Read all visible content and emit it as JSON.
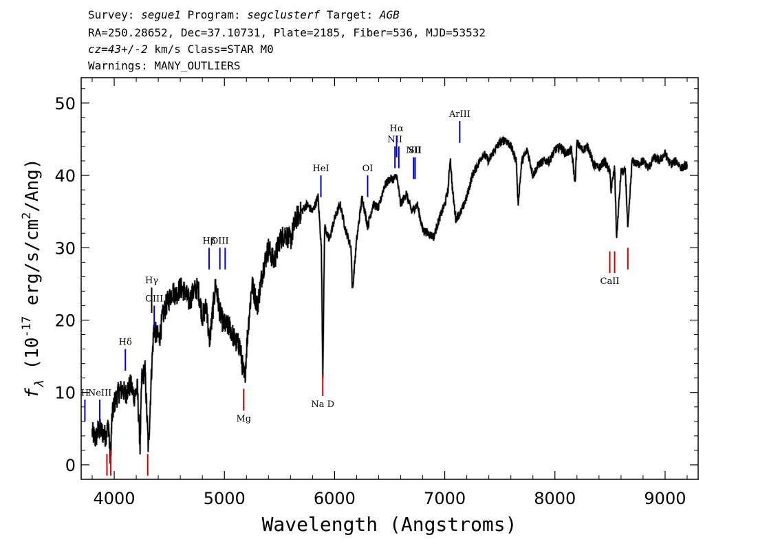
{
  "header": {
    "survey_label": "Survey:",
    "survey": "segue1",
    "program_label": "Program:",
    "program": "segclusterf",
    "target_label": "Target:",
    "target": "AGB",
    "line2": "RA=250.28652, Dec=37.10731, Plate=2185, Fiber=536, MJD=53532",
    "cz": "cz=43+/-2",
    "line3_rest": " km/s Class=STAR M0",
    "line4": "Warnings: MANY_OUTLIERS"
  },
  "chart_data": {
    "type": "line",
    "xlabel": "Wavelength (Angstroms)",
    "ylabel_prefix": "f",
    "ylabel_sub": "λ",
    "ylabel_rest": " (10",
    "ylabel_exp": "-17",
    "ylabel_units": " erg/s/cm",
    "ylabel_exp2": "2",
    "ylabel_end": "/Ang)",
    "xlim": [
      3700,
      9300
    ],
    "ylim": [
      -2,
      53.5
    ],
    "xticks": [
      4000,
      5000,
      6000,
      7000,
      8000,
      9000
    ],
    "yticks": [
      0,
      10,
      20,
      30,
      40,
      50
    ],
    "grid": false,
    "series": [
      {
        "color": "#000000",
        "x": [
          3800,
          3830,
          3860,
          3890,
          3920,
          3950,
          3965,
          3980,
          4000,
          4040,
          4080,
          4101,
          4120,
          4150,
          4180,
          4210,
          4235,
          4250,
          4280,
          4310,
          4340,
          4360,
          4380,
          4410,
          4440,
          4470,
          4500,
          4530,
          4560,
          4600,
          4640,
          4680,
          4720,
          4760,
          4800,
          4840,
          4861,
          4880,
          4920,
          4960,
          4990,
          5050,
          5100,
          5140,
          5170,
          5183,
          5210,
          5250,
          5300,
          5350,
          5400,
          5450,
          5500,
          5550,
          5600,
          5650,
          5700,
          5750,
          5800,
          5850,
          5880,
          5893,
          5910,
          5950,
          6000,
          6050,
          6100,
          6150,
          6162,
          6200,
          6250,
          6300,
          6350,
          6400,
          6450,
          6500,
          6540,
          6563,
          6600,
          6650,
          6700,
          6750,
          6800,
          6850,
          6900,
          6950,
          7000,
          7030,
          7050,
          7070,
          7100,
          7150,
          7200,
          7250,
          7300,
          7350,
          7400,
          7450,
          7500,
          7550,
          7600,
          7650,
          7665,
          7700,
          7750,
          7800,
          7850,
          7900,
          7950,
          8000,
          8050,
          8100,
          8150,
          8183,
          8200,
          8250,
          8300,
          8350,
          8400,
          8450,
          8498,
          8510,
          8542,
          8560,
          8600,
          8640,
          8662,
          8700,
          8750,
          8800,
          8850,
          8900,
          8950,
          9000,
          9050,
          9100,
          9150,
          9200
        ],
        "y": [
          4.5,
          3.5,
          5.0,
          4.5,
          4.0,
          5.5,
          0.5,
          6.5,
          8.5,
          10.0,
          10.5,
          9.5,
          10.5,
          11.0,
          9.5,
          10.5,
          2.5,
          12.0,
          13.0,
          2.0,
          13.5,
          19.0,
          18.0,
          17.5,
          20.5,
          22.0,
          23.0,
          24.0,
          23.5,
          24.5,
          24.0,
          22.5,
          24.0,
          24.5,
          20.5,
          22.0,
          17.0,
          19.0,
          25.0,
          21.0,
          19.5,
          19.0,
          17.0,
          16.5,
          13.0,
          11.5,
          18.0,
          25.0,
          22.0,
          27.0,
          30.0,
          28.0,
          31.0,
          32.0,
          31.0,
          34.0,
          35.0,
          36.0,
          35.0,
          37.0,
          30.0,
          12.5,
          33.0,
          31.0,
          34.0,
          36.0,
          32.5,
          30.0,
          24.0,
          31.0,
          37.0,
          33.0,
          36.0,
          35.5,
          38.5,
          39.5,
          39.5,
          40.0,
          36.0,
          37.5,
          35.0,
          36.0,
          32.5,
          32.0,
          31.5,
          34.0,
          36.0,
          38.0,
          42.5,
          38.0,
          34.0,
          35.0,
          37.0,
          40.0,
          41.5,
          43.0,
          42.0,
          43.5,
          44.5,
          45.0,
          44.0,
          42.0,
          36.0,
          42.0,
          43.5,
          40.0,
          41.5,
          42.0,
          42.0,
          43.5,
          44.0,
          43.0,
          43.5,
          39.0,
          44.5,
          43.5,
          44.0,
          41.5,
          41.0,
          42.0,
          40.5,
          38.0,
          41.0,
          31.5,
          40.5,
          40.5,
          32.5,
          42.0,
          41.5,
          42.0,
          41.0,
          42.5,
          42.0,
          43.0,
          41.5,
          42.0,
          41.0,
          41.5
        ]
      }
    ],
    "lines_top": [
      {
        "label": "H",
        "x": 3734,
        "y_bottom": 6.0,
        "y_top": 9.0,
        "color": "#0000cc"
      },
      {
        "label": "NeIII",
        "x": 3869,
        "y_bottom": 6.0,
        "y_top": 9.0,
        "color": "#0000cc"
      },
      {
        "label": "Hδ",
        "x": 4101,
        "y_bottom": 13.0,
        "y_top": 16.0,
        "color": "#0000cc"
      },
      {
        "label": "Hγ",
        "x": 4340,
        "y_bottom": 21.0,
        "y_top": 24.5,
        "color": "#000000"
      },
      {
        "label": "OIII",
        "x": 4363,
        "y_bottom": 19.0,
        "y_top": 22.0,
        "color": "#0000cc"
      },
      {
        "label": "Hβ",
        "x": 4861,
        "y_bottom": 27.0,
        "y_top": 30.0,
        "color": "#0000cc"
      },
      {
        "label": "OIII",
        "x": 4959,
        "y_bottom": 27.0,
        "y_top": 30.0,
        "color": "#0000cc"
      },
      {
        "label": "",
        "x": 5007,
        "y_bottom": 27.0,
        "y_top": 30.0,
        "color": "#0000cc"
      },
      {
        "label": "HeI",
        "x": 5876,
        "y_bottom": 37.0,
        "y_top": 40.0,
        "color": "#0000cc"
      },
      {
        "label": "OI",
        "x": 6300,
        "y_bottom": 37.0,
        "y_top": 40.0,
        "color": "#0000cc"
      },
      {
        "label": "NII",
        "x": 6548,
        "y_bottom": 41.0,
        "y_top": 44.0,
        "color": "#0000cc"
      },
      {
        "label": "Hα",
        "x": 6563,
        "y_bottom": 42.5,
        "y_top": 45.5,
        "color": "#0000cc"
      },
      {
        "label": "",
        "x": 6583,
        "y_bottom": 41.0,
        "y_top": 44.0,
        "color": "#0000cc"
      },
      {
        "label": "NII",
        "x": 6717,
        "y_bottom": 39.5,
        "y_top": 42.5,
        "color": "#0000cc"
      },
      {
        "label": "SII",
        "x": 6731,
        "y_bottom": 39.5,
        "y_top": 42.5,
        "color": "#0000cc"
      },
      {
        "label": "ArIII",
        "x": 7136,
        "y_bottom": 44.5,
        "y_top": 47.5,
        "color": "#0000cc"
      }
    ],
    "lines_bottom": [
      {
        "label": "",
        "x": 3934,
        "y_bottom": -1.5,
        "y_top": 1.5,
        "color": "#cc0000"
      },
      {
        "label": "",
        "x": 3969,
        "y_bottom": -1.5,
        "y_top": 2.0,
        "color": "#cc0000"
      },
      {
        "label": "",
        "x": 4304,
        "y_bottom": -1.5,
        "y_top": 1.5,
        "color": "#cc0000"
      },
      {
        "label": "Mg",
        "x": 5175,
        "y_bottom": 7.5,
        "y_top": 10.5,
        "color": "#cc0000"
      },
      {
        "label": "Na D",
        "x": 5893,
        "y_bottom": 9.5,
        "y_top": 12.5,
        "color": "#cc0000"
      },
      {
        "label": "CaII",
        "x": 8498,
        "y_bottom": 26.5,
        "y_top": 29.5,
        "color": "#cc0000"
      },
      {
        "label": "",
        "x": 8542,
        "y_bottom": 26.5,
        "y_top": 29.5,
        "color": "#cc0000"
      },
      {
        "label": "",
        "x": 8662,
        "y_bottom": 27.0,
        "y_top": 30.0,
        "color": "#cc0000"
      }
    ]
  }
}
